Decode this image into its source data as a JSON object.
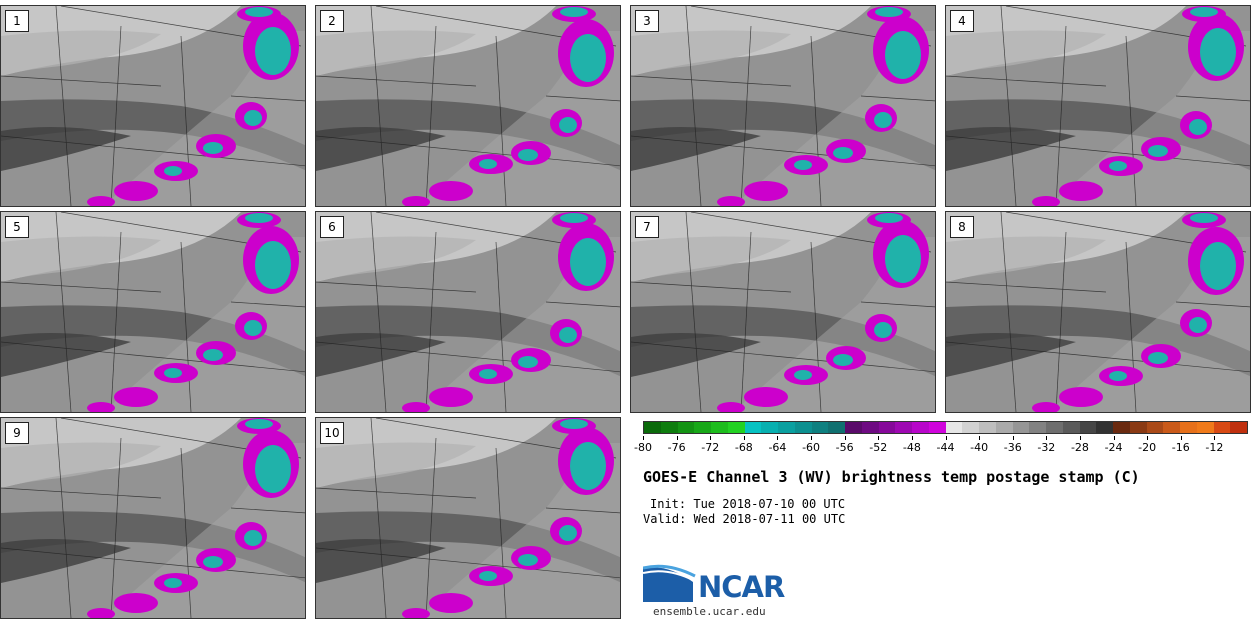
{
  "panels": [
    {
      "label": "1"
    },
    {
      "label": "2"
    },
    {
      "label": "3"
    },
    {
      "label": "4"
    },
    {
      "label": "5"
    },
    {
      "label": "6"
    },
    {
      "label": "7"
    },
    {
      "label": "8"
    },
    {
      "label": "9"
    },
    {
      "label": "10"
    }
  ],
  "colorbar": {
    "tick_labels": [
      "-80",
      "-76",
      "-72",
      "-68",
      "-64",
      "-60",
      "-56",
      "-52",
      "-48",
      "-44",
      "-40",
      "-36",
      "-32",
      "-28",
      "-24",
      "-20",
      "-16",
      "-12"
    ],
    "colors": [
      "#0a6a0a",
      "#0e7d0e",
      "#139313",
      "#18a818",
      "#1dbd1d",
      "#22d222",
      "#06c2c2",
      "#08b0b0",
      "#0aa0a0",
      "#0c9090",
      "#0e8080",
      "#107070",
      "#5a0a6a",
      "#6e0a82",
      "#86089a",
      "#9e08b2",
      "#b806ca",
      "#d004dc",
      "#e6e6e6",
      "#d2d2d2",
      "#bebebe",
      "#aaaaaa",
      "#969696",
      "#828282",
      "#6e6e6e",
      "#5a5a5a",
      "#464646",
      "#323232",
      "#6a2a10",
      "#8a3a14",
      "#aa4a18",
      "#ca5a1a",
      "#e6701a",
      "#f07a1a",
      "#d84a14",
      "#c0300e"
    ]
  },
  "title": "GOES-E Channel 3 (WV) brightness temp postage stamp (C)",
  "init": "Init: Tue 2018-07-10 00 UTC",
  "valid": "Valid: Wed 2018-07-11 00 UTC",
  "logo": {
    "text": "NCAR",
    "url": "ensemble.ucar.edu",
    "colors": {
      "blue": "#1c5ea8",
      "sky": "#4aa3df"
    }
  }
}
